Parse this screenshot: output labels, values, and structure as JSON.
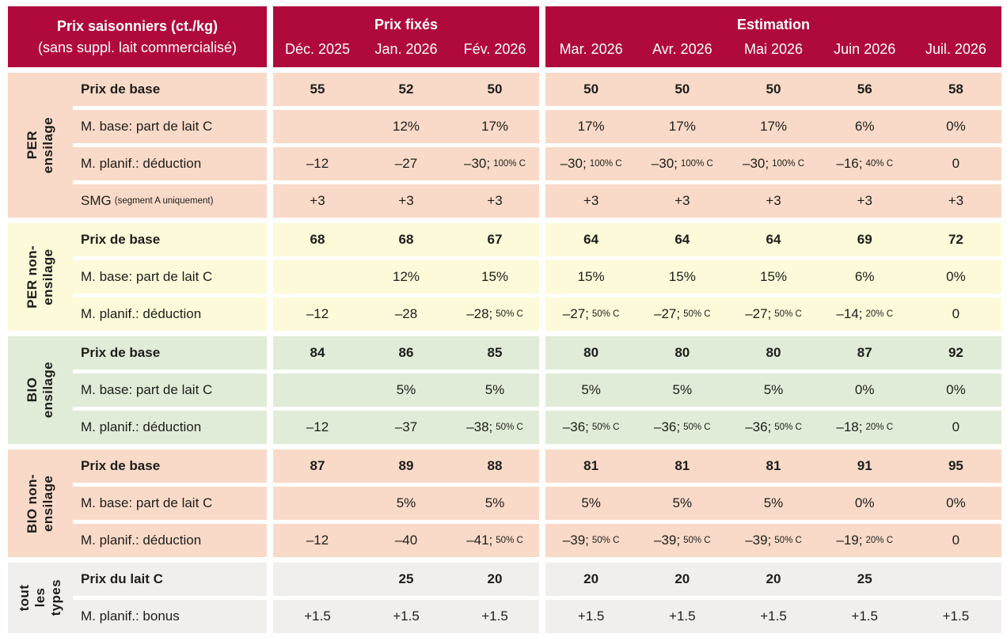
{
  "chart_data": {
    "type": "table",
    "title": "Prix saisonniers (ct./kg)",
    "subtitle": "(sans suppl. lait commercialisé)",
    "unit": "ct./kg",
    "colors": {
      "header_bg": "#b00a3c",
      "header_text": "#ffffff",
      "text": "#1d1d1b",
      "salmon": "#f9dac8",
      "yellow": "#fcfad9",
      "green": "#e0ecd7",
      "gray": "#f0efeb"
    },
    "column_groups": [
      {
        "label": "Prix fixés",
        "months": [
          "Déc. 2025",
          "Jan. 2026",
          "Fév. 2026"
        ]
      },
      {
        "label": "Estimation",
        "months": [
          "Mar. 2026",
          "Avr. 2026",
          "Mai 2026",
          "Juin 2026",
          "Juil. 2026"
        ]
      }
    ],
    "row_groups": [
      {
        "label": "PER\nensilage",
        "slug": "per-ensilage",
        "color": "#f9dac8",
        "rows": [
          {
            "label": "Prix de base",
            "bold": true,
            "cells": [
              "55",
              "52",
              "50",
              "50",
              "50",
              "50",
              "56",
              "58"
            ]
          },
          {
            "label": "M. base: part de lait C",
            "cells": [
              "",
              "12%",
              "17%",
              "17%",
              "17%",
              "17%",
              "6%",
              "0%"
            ]
          },
          {
            "label": "M. planif.: déduction",
            "cells": [
              "–12",
              "–27",
              {
                "main": "–30;",
                "small": "100% C"
              },
              {
                "main": "–30;",
                "small": "100% C"
              },
              {
                "main": "–30;",
                "small": "100% C"
              },
              {
                "main": "–30;",
                "small": "100% C"
              },
              {
                "main": "–16;",
                "small": "40% C"
              },
              "0"
            ]
          },
          {
            "label": {
              "main": "SMG",
              "small": "(segment A uniquement)"
            },
            "cells": [
              "+3",
              "+3",
              "+3",
              "+3",
              "+3",
              "+3",
              "+3",
              "+3"
            ]
          }
        ]
      },
      {
        "label": "PER non-\nensilage",
        "slug": "per-non-ensilage",
        "color": "#fcfad9",
        "rows": [
          {
            "label": "Prix de base",
            "bold": true,
            "cells": [
              "68",
              "68",
              "67",
              "64",
              "64",
              "64",
              "69",
              "72"
            ]
          },
          {
            "label": "M. base: part de lait C",
            "cells": [
              "",
              "12%",
              "15%",
              "15%",
              "15%",
              "15%",
              "6%",
              "0%"
            ]
          },
          {
            "label": "M. planif.: déduction",
            "cells": [
              "–12",
              "–28",
              {
                "main": "–28;",
                "small": "50% C"
              },
              {
                "main": "–27;",
                "small": "50% C"
              },
              {
                "main": "–27;",
                "small": "50% C"
              },
              {
                "main": "–27;",
                "small": "50% C"
              },
              {
                "main": "–14;",
                "small": "20% C"
              },
              "0"
            ]
          }
        ]
      },
      {
        "label": "BIO\nensilage",
        "slug": "bio-ensilage",
        "color": "#e0ecd7",
        "rows": [
          {
            "label": "Prix de base",
            "bold": true,
            "cells": [
              "84",
              "86",
              "85",
              "80",
              "80",
              "80",
              "87",
              "92"
            ]
          },
          {
            "label": "M. base: part de lait C",
            "cells": [
              "",
              "5%",
              "5%",
              "5%",
              "5%",
              "5%",
              "0%",
              "0%"
            ]
          },
          {
            "label": "M. planif.: déduction",
            "cells": [
              "–12",
              "–37",
              {
                "main": "–38;",
                "small": "50% C"
              },
              {
                "main": "–36;",
                "small": "50% C"
              },
              {
                "main": "–36;",
                "small": "50% C"
              },
              {
                "main": "–36;",
                "small": "50% C"
              },
              {
                "main": "–18;",
                "small": "20% C"
              },
              "0"
            ]
          }
        ]
      },
      {
        "label": "BIO non-\nensilage",
        "slug": "bio-non-ensilage",
        "color": "#f9dac8",
        "rows": [
          {
            "label": "Prix de base",
            "bold": true,
            "cells": [
              "87",
              "89",
              "88",
              "81",
              "81",
              "81",
              "91",
              "95"
            ]
          },
          {
            "label": "M. base: part de lait C",
            "cells": [
              "",
              "5%",
              "5%",
              "5%",
              "5%",
              "5%",
              "0%",
              "0%"
            ]
          },
          {
            "label": "M. planif.: déduction",
            "cells": [
              "–12",
              "–40",
              {
                "main": "–41;",
                "small": "50% C"
              },
              {
                "main": "–39;",
                "small": "50% C"
              },
              {
                "main": "–39;",
                "small": "50% C"
              },
              {
                "main": "–39;",
                "small": "50% C"
              },
              {
                "main": "–19;",
                "small": "20% C"
              },
              "0"
            ]
          }
        ]
      },
      {
        "label": "tout\nles\ntypes",
        "slug": "tout-les-types",
        "color": "#f0efeb",
        "rows": [
          {
            "label": "Prix du lait C",
            "bold": true,
            "cells": [
              "",
              "25",
              "20",
              "20",
              "20",
              "20",
              "25",
              ""
            ]
          },
          {
            "label": "M. planif.: bonus",
            "cells": [
              "+1.5",
              "+1.5",
              "+1.5",
              "+1.5",
              "+1.5",
              "+1.5",
              "+1.5",
              "+1.5"
            ]
          }
        ]
      }
    ]
  }
}
